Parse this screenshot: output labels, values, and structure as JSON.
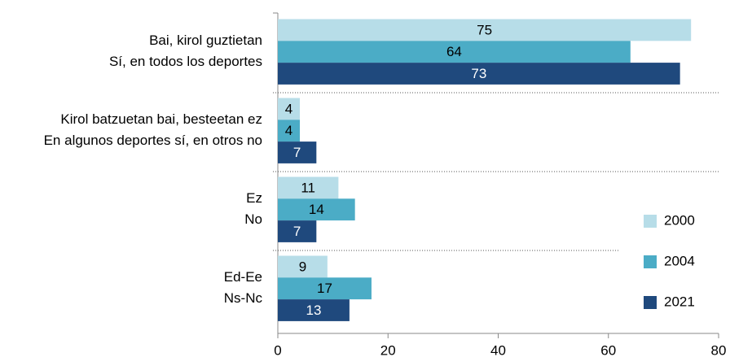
{
  "chart_data": {
    "type": "bar",
    "orientation": "horizontal",
    "categories": [
      [
        "Bai, kirol guztietan",
        "Sí, en todos los deportes"
      ],
      [
        "Kirol batzuetan bai, besteetan ez",
        "En algunos deportes sí, en otros no"
      ],
      [
        "Ez",
        "No"
      ],
      [
        "Ed-Ee",
        "Ns-Nc"
      ]
    ],
    "series": [
      {
        "name": "2000",
        "color": "#b7dde8",
        "values": [
          75,
          4,
          11,
          9
        ]
      },
      {
        "name": "2004",
        "color": "#4bacc6",
        "values": [
          64,
          4,
          14,
          17
        ]
      },
      {
        "name": "2021",
        "color": "#1f497d",
        "values": [
          73,
          7,
          7,
          13
        ]
      }
    ],
    "xlim": [
      0,
      80
    ],
    "xticks": [
      0,
      20,
      40,
      60,
      80
    ],
    "legend": "right"
  }
}
